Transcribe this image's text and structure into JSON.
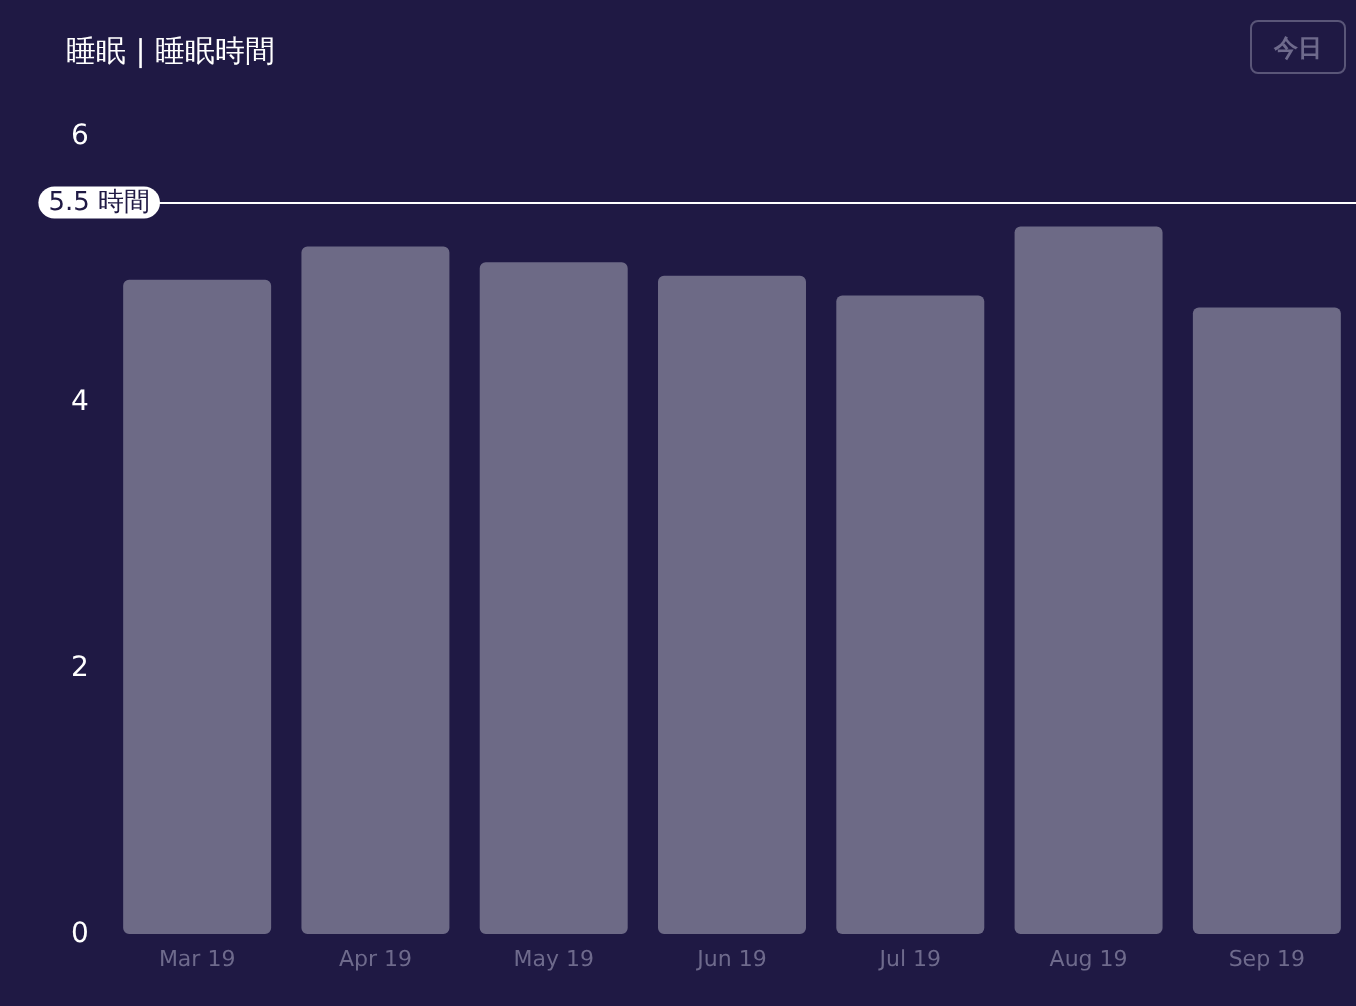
{
  "chart_data": {
    "type": "bar",
    "title": "睡眠 | 睡眠時間",
    "categories": [
      "Mar 19",
      "Apr 19",
      "May 19",
      "Jun 19",
      "Jul 19",
      "Aug 19",
      "Sep 19"
    ],
    "values": [
      4.92,
      5.17,
      5.05,
      4.95,
      4.8,
      5.32,
      4.71
    ],
    "color": "#6d6a86",
    "ylim": [
      0,
      6
    ],
    "yticks": [
      0,
      2,
      4,
      6
    ],
    "grid": false,
    "ref_lines": [
      {
        "axis": "y",
        "value": 5.5,
        "label": "5.5 時間",
        "color": "#ffffff"
      }
    ],
    "annotations": [
      "今日"
    ]
  }
}
